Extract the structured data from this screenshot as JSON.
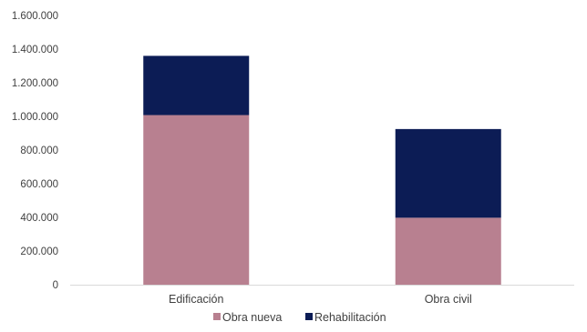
{
  "chart_data": {
    "type": "bar",
    "stacked": true,
    "title": "",
    "xlabel": "",
    "ylabel": "",
    "categories": [
      "Edificación",
      "Obra civil"
    ],
    "series": [
      {
        "name": "Obra nueva",
        "values": [
          1008000,
          398000
        ],
        "color": "#b88090"
      },
      {
        "name": "Rehabilitación",
        "values": [
          352000,
          527000
        ],
        "color": "#0c1c55"
      }
    ],
    "ylim": [
      0,
      1600000
    ],
    "yticks": [
      0,
      200000,
      400000,
      600000,
      800000,
      1000000,
      1200000,
      1400000,
      1600000
    ],
    "ytick_labels": [
      "0",
      "200.000",
      "400.000",
      "600.000",
      "800.000",
      "1.000.000",
      "1.200.000",
      "1.400.000",
      "1.600.000"
    ],
    "grid": false,
    "legend_position": "bottom"
  }
}
